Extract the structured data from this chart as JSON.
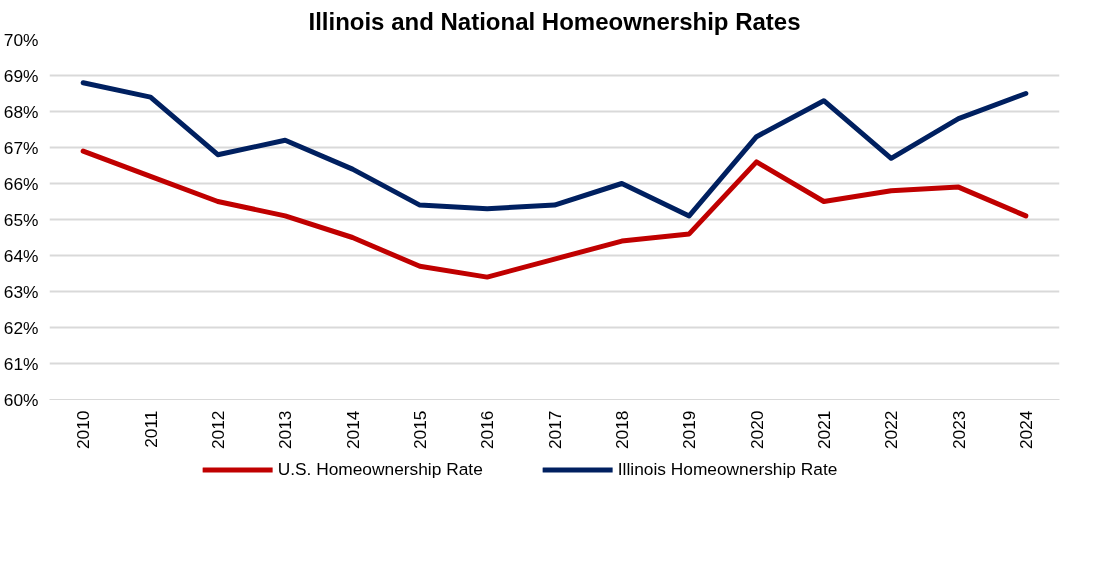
{
  "chart_data": {
    "type": "line",
    "title": "Illinois and National Homeownership Rates",
    "categories": [
      "2010",
      "2011",
      "2012",
      "2013",
      "2014",
      "2015",
      "2016",
      "2017",
      "2018",
      "2019",
      "2020",
      "2021",
      "2022",
      "2023",
      "2024"
    ],
    "series": [
      {
        "name": "U.S. Homeownership Rate",
        "color": "#c00000",
        "values": [
          66.9,
          66.2,
          65.5,
          65.1,
          64.5,
          63.7,
          63.4,
          63.9,
          64.4,
          64.6,
          66.6,
          65.5,
          65.8,
          65.9,
          65.1
        ]
      },
      {
        "name": "Illinois Homeownership Rate",
        "color": "#002060",
        "values": [
          68.8,
          68.4,
          66.8,
          67.2,
          66.4,
          65.4,
          65.3,
          65.4,
          66.0,
          65.1,
          67.3,
          68.3,
          66.7,
          67.8,
          68.5
        ]
      }
    ],
    "ylim": [
      60,
      70
    ],
    "yticks": [
      {
        "value": 60,
        "label": "60%"
      },
      {
        "value": 61,
        "label": "61%"
      },
      {
        "value": 62,
        "label": "62%"
      },
      {
        "value": 63,
        "label": "63%"
      },
      {
        "value": 64,
        "label": "64%"
      },
      {
        "value": 65,
        "label": "65%"
      },
      {
        "value": 66,
        "label": "66%"
      },
      {
        "value": 67,
        "label": "67%"
      },
      {
        "value": 68,
        "label": "68%"
      },
      {
        "value": 69,
        "label": "69%"
      },
      {
        "value": 70,
        "label": "70%"
      }
    ],
    "grid": "y",
    "legend": "bottom",
    "marker": "none",
    "line_style": "solid"
  }
}
